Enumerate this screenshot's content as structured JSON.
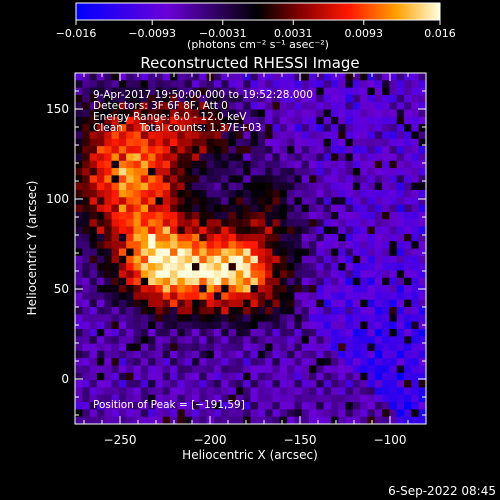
{
  "chart_data": {
    "type": "heatmap",
    "title": "Reconstructed RHESSI Image",
    "xlabel": "Heliocentric X (arcsec)",
    "ylabel": "Heliocentric Y (arcsec)",
    "xlim": [
      -275,
      -80
    ],
    "ylim": [
      -25,
      170
    ],
    "x_ticks": [
      {
        "value": -250,
        "label": "−250"
      },
      {
        "value": -200,
        "label": "−200"
      },
      {
        "value": -150,
        "label": "−150"
      },
      {
        "value": -100,
        "label": "−100"
      }
    ],
    "y_ticks": [
      {
        "value": 0,
        "label": "0"
      },
      {
        "value": 50,
        "label": "50"
      },
      {
        "value": 100,
        "label": "100"
      },
      {
        "value": 150,
        "label": "150"
      }
    ],
    "colorbar": {
      "range": [
        -0.016,
        0.016
      ],
      "ticks": [
        {
          "value": -0.016,
          "label": "−0.016"
        },
        {
          "value": -0.0093,
          "label": "−0.0093"
        },
        {
          "value": -0.0031,
          "label": "−0.0031"
        },
        {
          "value": 0.0031,
          "label": "0.0031"
        },
        {
          "value": 0.0093,
          "label": "0.0093"
        },
        {
          "value": 0.016,
          "label": "0.016"
        }
      ],
      "unit_label": "(photons cm⁻² s⁻¹ asec⁻²)"
    },
    "annotations": [
      "9-Apr-2017 19:50:00.000 to 19:52:28.000",
      "Detectors: 3F 6F 8F, Att 0",
      "Energy Range: 6.0 - 12.0 keV",
      "Clean     Total counts: 1.37E+03"
    ],
    "peak_label": "Position of Peak = [−191,59]",
    "peak": [
      -191,
      59
    ],
    "grid": false
  },
  "footer_date": "6-Sep-2022 08:45"
}
